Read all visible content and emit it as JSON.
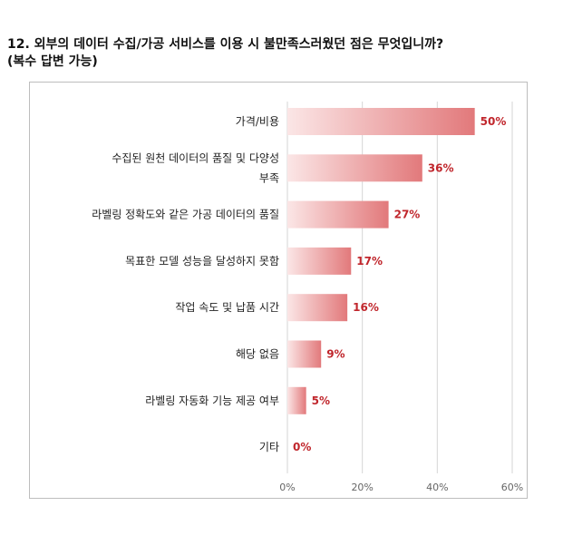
{
  "title": {
    "line1": "12. 외부의 데이터 수집/가공 서비스를 이용 시 불만족스러웠던 점은 무엇입니까?",
    "line2": "(복수 답변 가능)"
  },
  "chart_data": {
    "type": "bar",
    "orientation": "horizontal",
    "categories": [
      [
        "가격/비용"
      ],
      [
        "수집된 원천 데이터의 품질 및 다양성",
        "부족"
      ],
      [
        "라벨링 정확도와 같은 가공 데이터의 품질"
      ],
      [
        "목표한 모델 성능을 달성하지 못함"
      ],
      [
        "작업 속도 및 납품 시간"
      ],
      [
        "해당 없음"
      ],
      [
        "라벨링 자동화 기능 제공 여부"
      ],
      [
        "기타"
      ]
    ],
    "values": [
      50,
      36,
      27,
      17,
      16,
      9,
      5,
      0
    ],
    "value_labels": [
      "50%",
      "36%",
      "27%",
      "17%",
      "16%",
      "9%",
      "5%",
      "0%"
    ],
    "xlim": [
      0,
      60
    ],
    "xticks": [
      0,
      20,
      40,
      60
    ],
    "xtick_labels": [
      "0%",
      "20%",
      "40%",
      "60%"
    ],
    "grid": true,
    "legend": "none",
    "colors": {
      "bar_gradient_start": "#fbe6e6",
      "bar_gradient_end": "#e2797b",
      "value_label": "#c0262c",
      "gridline": "#d6d6d6"
    }
  }
}
